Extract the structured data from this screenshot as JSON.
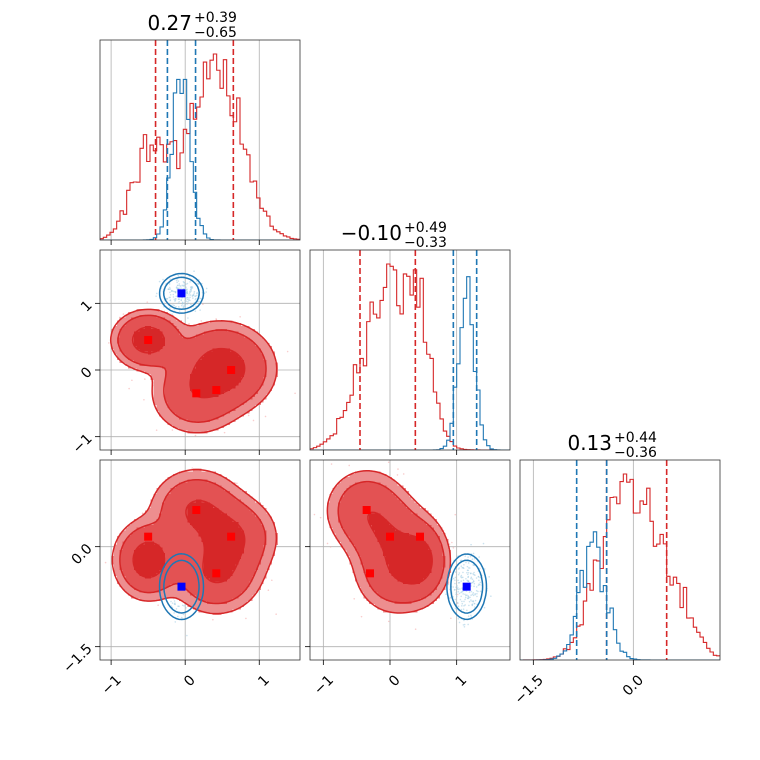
{
  "chart_data": {
    "type": "corner",
    "parameters": [
      {
        "title": {
          "value": "0.27",
          "upper": "+0.39",
          "lower": "−0.65"
        },
        "range": [
          -1.15,
          1.55
        ],
        "ticks": [
          -1,
          0,
          1
        ],
        "tick_labels": [
          "−1",
          "0",
          "1"
        ],
        "quantiles": {
          "red": [
            -0.4,
            0.65
          ],
          "blue": [
            -0.24,
            0.14
          ]
        }
      },
      {
        "title": {
          "value": "−0.10",
          "upper": "+0.49",
          "lower": "−0.33"
        },
        "range": [
          -1.2,
          1.8
        ],
        "ticks": [
          -1,
          0,
          1
        ],
        "tick_labels": [
          "−1",
          "0",
          "1"
        ],
        "quantiles": {
          "red": [
            -0.45,
            0.38
          ],
          "blue": [
            0.95,
            1.3
          ]
        }
      },
      {
        "title": {
          "value": "0.13",
          "upper": "+0.44",
          "lower": "−0.36"
        },
        "range": [
          -1.7,
          1.3
        ],
        "ticks": [
          -1.5,
          0.0
        ],
        "tick_labels": [
          "−1.5",
          "0.0"
        ],
        "quantiles": {
          "red": [
            -0.4,
            0.5
          ],
          "blue": [
            -0.85,
            -0.4
          ]
        }
      }
    ],
    "series": [
      {
        "color": "#d62728",
        "modes": [
          {
            "mu": [
              -0.5,
              0.45,
              -0.2
            ],
            "sigma": [
              0.22,
              0.2,
              0.28
            ],
            "weight": 1
          },
          {
            "mu": [
              0.15,
              -0.35,
              0.55
            ],
            "sigma": [
              0.3,
              0.3,
              0.3
            ],
            "weight": 1
          },
          {
            "mu": [
              0.42,
              0.1,
              -0.4
            ],
            "sigma": [
              0.3,
              0.3,
              0.3
            ],
            "weight": 1
          },
          {
            "mu": [
              0.62,
              0.0,
              0.15
            ],
            "sigma": [
              0.3,
              0.3,
              0.3
            ],
            "weight": 1
          }
        ],
        "markers": [
          [
            -0.5,
            0.45,
            0.15
          ],
          [
            0.15,
            -0.35,
            0.55
          ],
          [
            0.42,
            -0.3,
            -0.4
          ],
          [
            0.62,
            0.0,
            0.15
          ]
        ]
      },
      {
        "color": "#1f77b4",
        "modes": [
          {
            "mu": [
              -0.05,
              1.15,
              -0.6
            ],
            "sigma": [
              0.12,
              0.12,
              0.2
            ],
            "weight": 1
          }
        ],
        "markers": [
          [
            -0.05,
            1.15,
            -0.6
          ]
        ]
      }
    ],
    "marker_colors": {
      "red": "#ff0000",
      "blue": "#0000ff"
    }
  }
}
